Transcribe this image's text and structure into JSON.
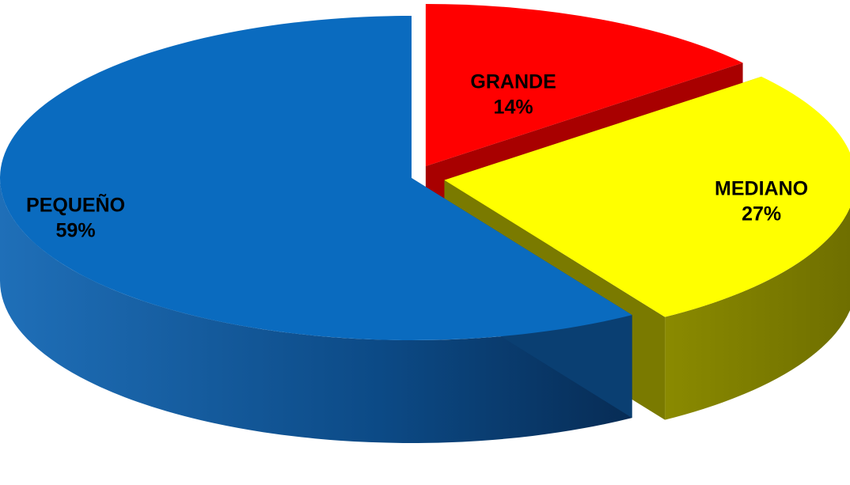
{
  "chart_data": {
    "type": "pie",
    "title": "",
    "slices": [
      {
        "label": "GRANDE",
        "value": 14,
        "display": "14%",
        "color": "#ff0000",
        "side_color": "#a80000"
      },
      {
        "label": "MEDIANO",
        "value": 27,
        "display": "27%",
        "color": "#ffff00",
        "side_color": "#7a7a00"
      },
      {
        "label": "PEQUEÑO",
        "value": 59,
        "display": "59%",
        "color": "#0a6bbf",
        "side_color": "#0a3f72"
      }
    ],
    "exploded": true,
    "legend": "none"
  }
}
